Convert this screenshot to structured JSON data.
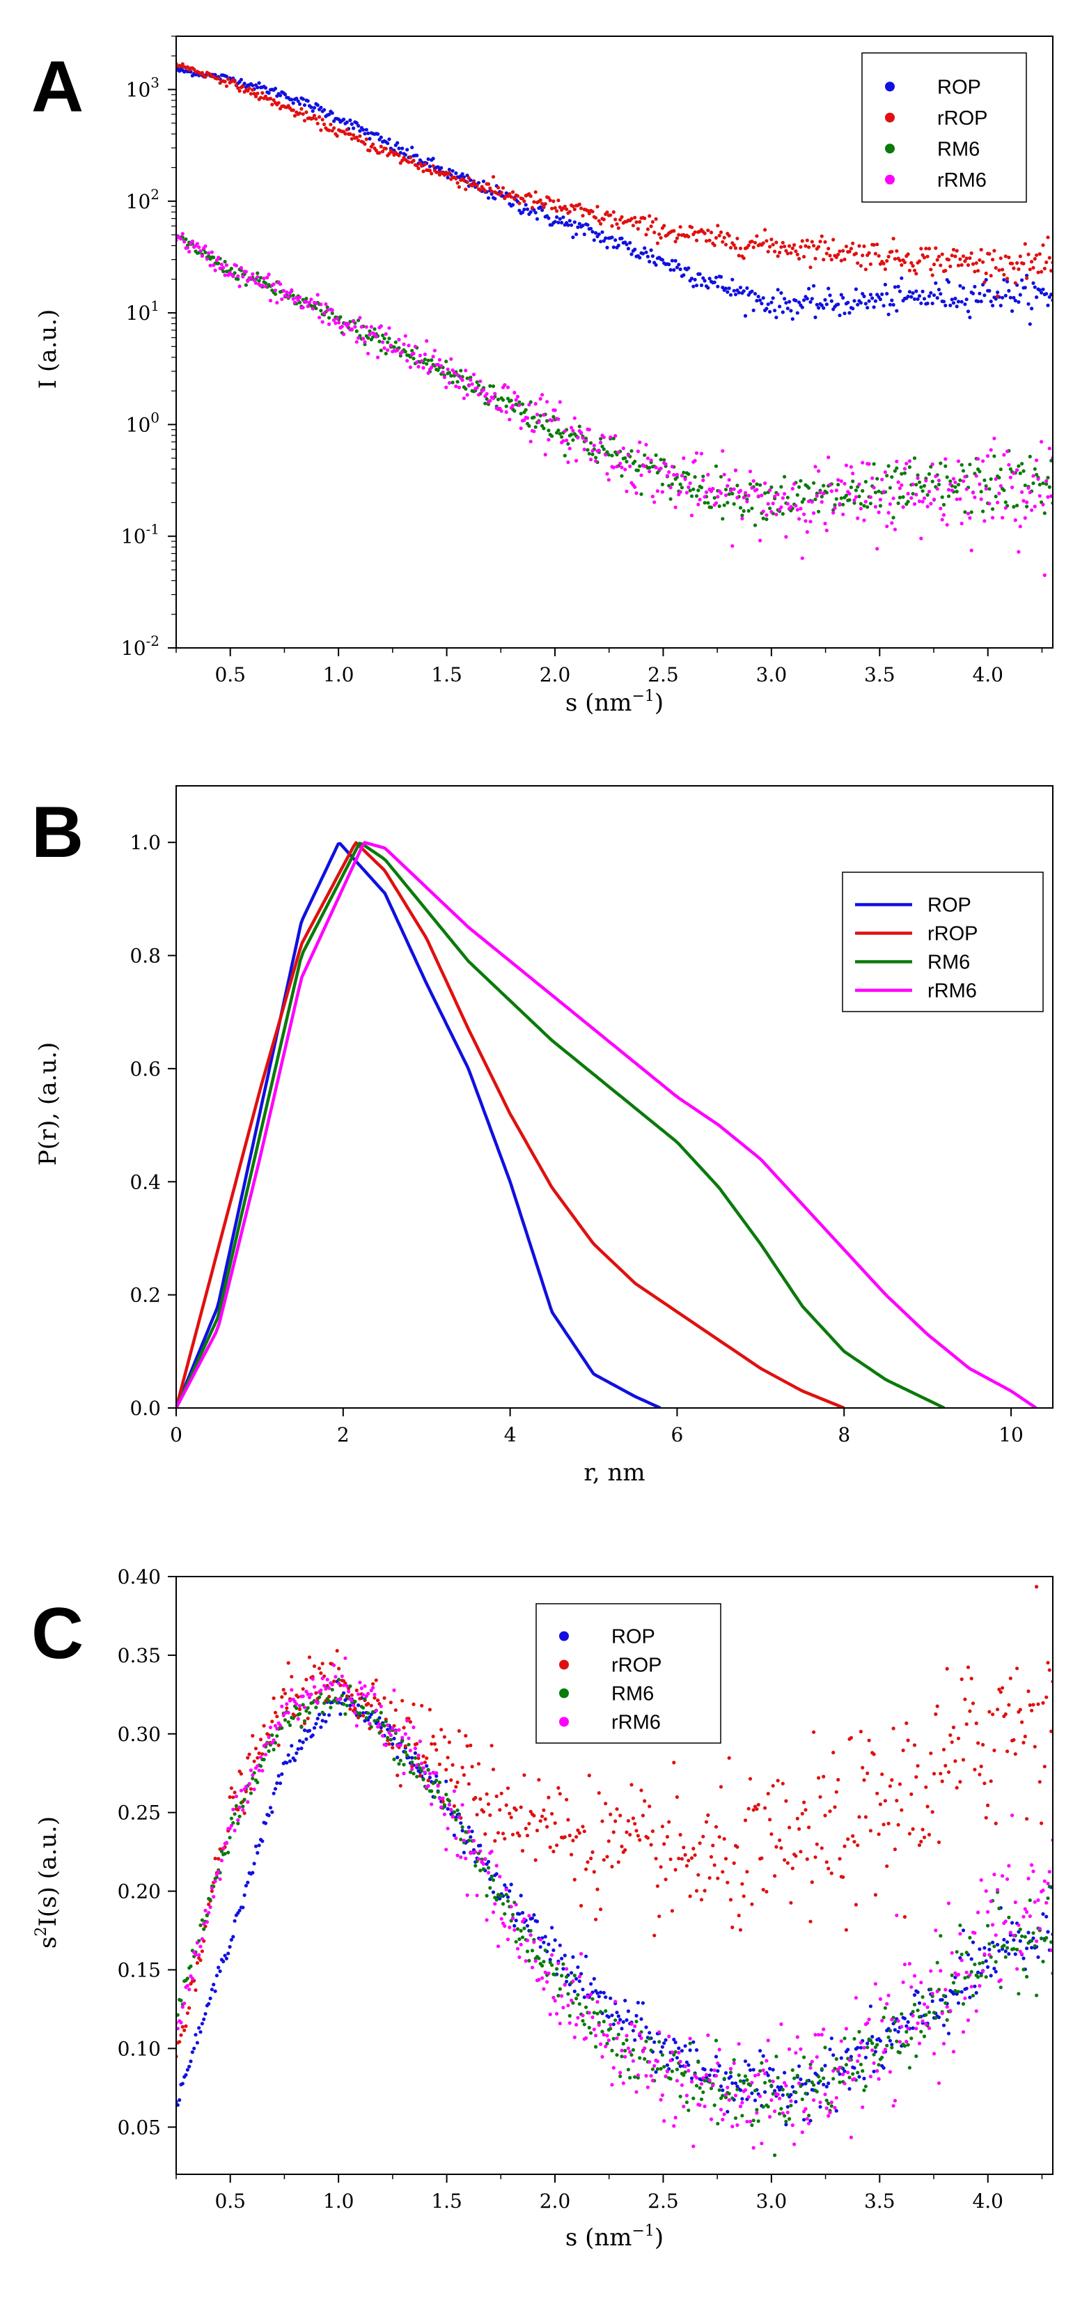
{
  "figure": {
    "panel_letters": [
      "A",
      "B",
      "C"
    ],
    "colors": {
      "ROP": "#1010e0",
      "rROP": "#e01010",
      "RM6": "#0a7a0a",
      "rRM6": "#ff00ff"
    }
  },
  "chart_data": [
    {
      "id": "A",
      "type": "scatter",
      "panel_label": "A",
      "xlabel": "s (nm",
      "xlabel_sup": "−1",
      "xlabel_end": ")",
      "ylabel": "I (a.u.)",
      "xlim": [
        0.25,
        4.3
      ],
      "ylim": [
        0.01,
        3000
      ],
      "yscale": "log",
      "xticks": [
        0.5,
        1.0,
        1.5,
        2.0,
        2.5,
        3.0,
        3.5,
        4.0
      ],
      "xtick_labels": [
        "0.5",
        "1.0",
        "1.5",
        "2.0",
        "2.5",
        "3.0",
        "3.5",
        "4.0"
      ],
      "yticks": [
        0.01,
        0.1,
        1,
        10,
        100,
        1000
      ],
      "ytick_labels": [
        {
          "base": "10",
          "exp": "-2"
        },
        {
          "base": "10",
          "exp": "-1"
        },
        {
          "base": "10",
          "exp": "0"
        },
        {
          "base": "10",
          "exp": "1"
        },
        {
          "base": "10",
          "exp": "2"
        },
        {
          "base": "10",
          "exp": "3"
        }
      ],
      "legend": {
        "position": "top-right",
        "entries": [
          "ROP",
          "rROP",
          "RM6",
          "rRM6"
        ],
        "style": "marker"
      },
      "series": [
        {
          "name": "ROP",
          "color": "#1010e0",
          "x": [
            0.25,
            0.5,
            0.75,
            1.0,
            1.25,
            1.5,
            1.75,
            2.0,
            2.25,
            2.5,
            2.75,
            3.0,
            3.25,
            3.5,
            3.75,
            4.0,
            4.3
          ],
          "y": [
            1500,
            1250,
            900,
            560,
            310,
            180,
            110,
            68,
            45,
            29,
            18,
            12,
            12,
            13,
            14,
            15,
            14
          ],
          "noise": 0.05
        },
        {
          "name": "rROP",
          "color": "#e01010",
          "x": [
            0.25,
            0.5,
            0.75,
            1.0,
            1.25,
            1.5,
            1.75,
            2.0,
            2.25,
            2.5,
            2.75,
            3.0,
            3.25,
            3.5,
            3.75,
            4.0,
            4.3
          ],
          "y": [
            1700,
            1150,
            700,
            420,
            260,
            170,
            120,
            90,
            70,
            55,
            45,
            40,
            37,
            33,
            30,
            28,
            27
          ],
          "noise": 0.05
        },
        {
          "name": "RM6",
          "color": "#0a7a0a",
          "x": [
            0.25,
            0.5,
            0.75,
            1.0,
            1.25,
            1.5,
            1.75,
            2.0,
            2.25,
            2.5,
            2.75,
            3.0,
            3.25,
            3.5,
            3.75,
            4.0,
            4.3
          ],
          "y": [
            48,
            24,
            15,
            8.5,
            5.0,
            2.9,
            1.7,
            0.95,
            0.55,
            0.35,
            0.25,
            0.22,
            0.22,
            0.24,
            0.27,
            0.29,
            0.3
          ],
          "noise": 0.09
        },
        {
          "name": "rRM6",
          "color": "#ff00ff",
          "x": [
            0.25,
            0.5,
            0.75,
            1.0,
            1.25,
            1.5,
            1.75,
            2.0,
            2.25,
            2.5,
            2.75,
            3.0,
            3.25,
            3.5,
            3.75,
            4.0,
            4.3
          ],
          "y": [
            48,
            24,
            15,
            8.5,
            5.0,
            2.9,
            1.7,
            0.95,
            0.55,
            0.34,
            0.24,
            0.21,
            0.21,
            0.23,
            0.26,
            0.28,
            0.29
          ],
          "noise": 0.14
        }
      ]
    },
    {
      "id": "B",
      "type": "line",
      "panel_label": "B",
      "xlabel": "r, nm",
      "ylabel": "P(r), (a.u.)",
      "xlim": [
        0,
        10.5
      ],
      "ylim": [
        0,
        1.1
      ],
      "xticks": [
        0,
        2,
        4,
        6,
        8,
        10
      ],
      "xtick_labels": [
        "0",
        "2",
        "4",
        "6",
        "8",
        "10"
      ],
      "yticks": [
        0.0,
        0.2,
        0.4,
        0.6,
        0.8,
        1.0
      ],
      "ytick_labels": [
        "0.0",
        "0.2",
        "0.4",
        "0.6",
        "0.8",
        "1.0"
      ],
      "legend": {
        "position": "top-right",
        "entries": [
          "ROP",
          "rROP",
          "RM6",
          "rRM6"
        ],
        "style": "line"
      },
      "series": [
        {
          "name": "ROP",
          "color": "#1010e0",
          "x": [
            0,
            0.5,
            1.0,
            1.5,
            1.95,
            2.5,
            3.0,
            3.5,
            4.0,
            4.5,
            5.0,
            5.5,
            5.8
          ],
          "y": [
            0,
            0.18,
            0.52,
            0.86,
            1.0,
            0.91,
            0.75,
            0.6,
            0.4,
            0.17,
            0.06,
            0.02,
            0.0
          ]
        },
        {
          "name": "rROP",
          "color": "#e01010",
          "x": [
            0,
            0.5,
            1.0,
            1.5,
            2.15,
            2.5,
            3.0,
            3.5,
            4.0,
            4.5,
            5.0,
            5.5,
            6.0,
            6.5,
            7.0,
            7.5,
            8.0
          ],
          "y": [
            0,
            0.28,
            0.56,
            0.82,
            1.0,
            0.95,
            0.83,
            0.67,
            0.52,
            0.39,
            0.29,
            0.22,
            0.17,
            0.12,
            0.07,
            0.03,
            0.0
          ]
        },
        {
          "name": "RM6",
          "color": "#0a7a0a",
          "x": [
            0,
            0.5,
            1.0,
            1.5,
            2.2,
            2.5,
            3.0,
            3.5,
            4.0,
            4.5,
            5.0,
            5.5,
            6.0,
            6.5,
            7.0,
            7.5,
            8.0,
            8.5,
            9.2
          ],
          "y": [
            0,
            0.16,
            0.48,
            0.8,
            1.0,
            0.97,
            0.88,
            0.79,
            0.72,
            0.65,
            0.59,
            0.53,
            0.47,
            0.39,
            0.29,
            0.18,
            0.1,
            0.05,
            0.0
          ]
        },
        {
          "name": "rRM6",
          "color": "#ff00ff",
          "x": [
            0,
            0.5,
            1.0,
            1.5,
            2.25,
            2.5,
            3.0,
            3.5,
            4.0,
            4.5,
            5.0,
            5.5,
            6.0,
            6.5,
            7.0,
            7.5,
            8.0,
            8.5,
            9.0,
            9.5,
            10.0,
            10.3
          ],
          "y": [
            0,
            0.14,
            0.44,
            0.76,
            1.0,
            0.99,
            0.92,
            0.85,
            0.79,
            0.73,
            0.67,
            0.61,
            0.55,
            0.5,
            0.44,
            0.36,
            0.28,
            0.2,
            0.13,
            0.07,
            0.03,
            0.0
          ]
        }
      ]
    },
    {
      "id": "C",
      "type": "scatter",
      "panel_label": "C",
      "xlabel": "s (nm",
      "xlabel_sup": "−1",
      "xlabel_end": ")",
      "ylabel": "I(s) (a.u.)",
      "ylabel_prefix": "s",
      "ylabel_sup": "2",
      "xlim": [
        0.25,
        4.3
      ],
      "ylim": [
        0.02,
        0.4
      ],
      "xticks": [
        0.5,
        1.0,
        1.5,
        2.0,
        2.5,
        3.0,
        3.5,
        4.0
      ],
      "xtick_labels": [
        "0.5",
        "1.0",
        "1.5",
        "2.0",
        "2.5",
        "3.0",
        "3.5",
        "4.0"
      ],
      "yticks": [
        0.05,
        0.1,
        0.15,
        0.2,
        0.25,
        0.3,
        0.35,
        0.4
      ],
      "ytick_labels": [
        "0.05",
        "0.10",
        "0.15",
        "0.20",
        "0.25",
        "0.30",
        "0.35",
        "0.40"
      ],
      "legend": {
        "position": "top-center",
        "entries": [
          "ROP",
          "rROP",
          "RM6",
          "rRM6"
        ],
        "style": "marker"
      },
      "series": [
        {
          "name": "ROP",
          "color": "#1010e0",
          "x": [
            0.25,
            0.5,
            0.75,
            1.0,
            1.25,
            1.5,
            1.75,
            2.0,
            2.25,
            2.5,
            2.75,
            3.0,
            3.25,
            3.5,
            3.75,
            4.0,
            4.3
          ],
          "y": [
            0.065,
            0.17,
            0.28,
            0.325,
            0.3,
            0.255,
            0.2,
            0.16,
            0.125,
            0.1,
            0.083,
            0.072,
            0.082,
            0.1,
            0.125,
            0.155,
            0.175
          ],
          "noise": 0.008
        },
        {
          "name": "rROP",
          "color": "#e01010",
          "x": [
            0.25,
            0.5,
            0.75,
            1.0,
            1.25,
            1.5,
            1.75,
            2.0,
            2.25,
            2.5,
            2.75,
            3.0,
            3.25,
            3.5,
            3.75,
            4.0,
            4.3
          ],
          "y": [
            0.095,
            0.25,
            0.32,
            0.335,
            0.31,
            0.28,
            0.255,
            0.24,
            0.228,
            0.22,
            0.218,
            0.222,
            0.235,
            0.25,
            0.27,
            0.3,
            0.33
          ],
          "noise": 0.022
        },
        {
          "name": "RM6",
          "color": "#0a7a0a",
          "x": [
            0.25,
            0.5,
            0.75,
            1.0,
            1.25,
            1.5,
            1.75,
            2.0,
            2.25,
            2.5,
            2.75,
            3.0,
            3.25,
            3.5,
            3.75,
            4.0,
            4.3
          ],
          "y": [
            0.12,
            0.24,
            0.31,
            0.325,
            0.3,
            0.255,
            0.195,
            0.145,
            0.11,
            0.088,
            0.075,
            0.07,
            0.08,
            0.1,
            0.13,
            0.16,
            0.18
          ],
          "noise": 0.01
        },
        {
          "name": "rRM6",
          "color": "#ff00ff",
          "x": [
            0.25,
            0.5,
            0.75,
            1.0,
            1.25,
            1.5,
            1.75,
            2.0,
            2.25,
            2.5,
            2.75,
            3.0,
            3.25,
            3.5,
            3.75,
            4.0,
            4.3
          ],
          "y": [
            0.11,
            0.24,
            0.315,
            0.335,
            0.305,
            0.255,
            0.19,
            0.14,
            0.105,
            0.085,
            0.072,
            0.068,
            0.078,
            0.1,
            0.13,
            0.17,
            0.2
          ],
          "noise": 0.016
        }
      ]
    }
  ]
}
